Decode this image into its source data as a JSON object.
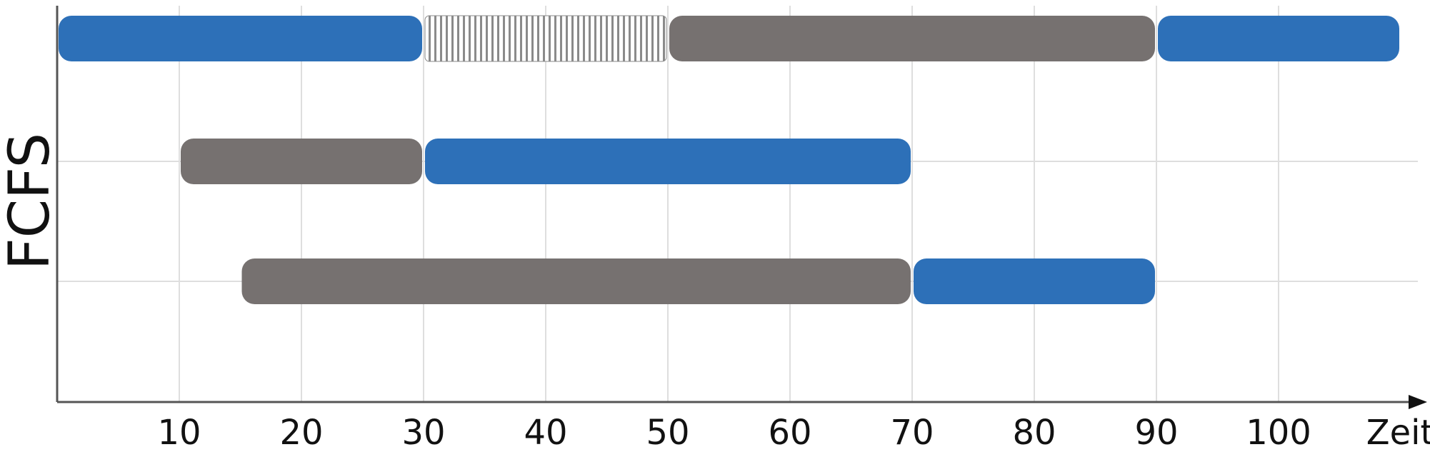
{
  "chart_data": {
    "type": "gantt",
    "ylabel": "FCFS",
    "xlabel": "Zeit",
    "xlim": [
      0,
      110
    ],
    "xticks": [
      10,
      20,
      30,
      40,
      50,
      60,
      70,
      80,
      90,
      100
    ],
    "grid": true,
    "rows": [
      {
        "segments": [
          {
            "start": 0,
            "end": 30,
            "state": "running"
          },
          {
            "start": 30,
            "end": 50,
            "state": "blocked"
          },
          {
            "start": 50,
            "end": 90,
            "state": "ready"
          },
          {
            "start": 90,
            "end": 110,
            "state": "running"
          }
        ]
      },
      {
        "segments": [
          {
            "start": 10,
            "end": 30,
            "state": "ready"
          },
          {
            "start": 30,
            "end": 70,
            "state": "running"
          }
        ]
      },
      {
        "segments": [
          {
            "start": 15,
            "end": 70,
            "state": "ready"
          },
          {
            "start": 70,
            "end": 90,
            "state": "running"
          }
        ]
      }
    ],
    "colors": {
      "running": "#2d70b8",
      "ready": "#767170",
      "blocked": "#8a8a8a"
    }
  }
}
